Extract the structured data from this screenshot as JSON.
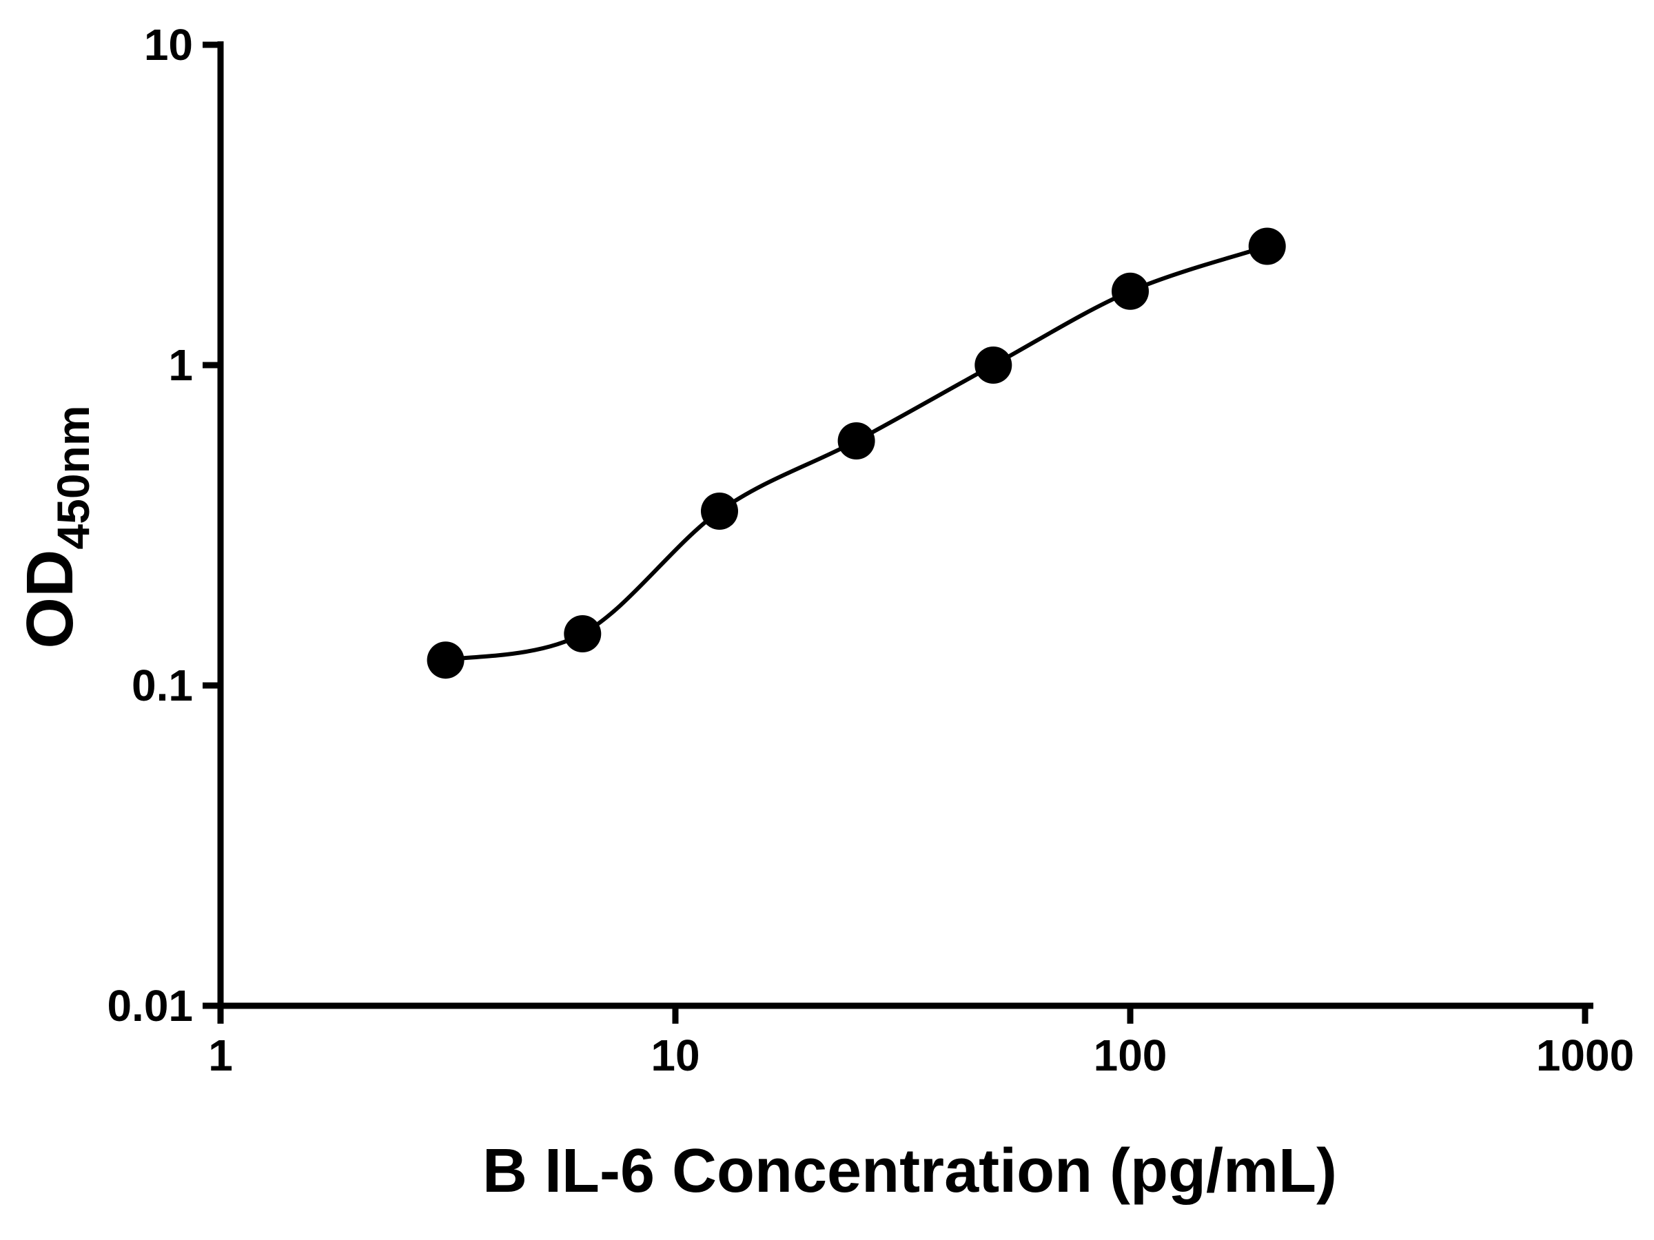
{
  "figure": {
    "background_color": "#ffffff",
    "axis_color": "#000000"
  },
  "chart_data": {
    "type": "scatter",
    "title": "",
    "xlabel": "B IL-6 Concentration (pg/mL)",
    "ylabel": "OD450nm",
    "ylabel_main": "OD",
    "ylabel_sub": "450nm",
    "xscale": "log",
    "yscale": "log",
    "xlim": [
      1,
      1000
    ],
    "ylim": [
      0.01,
      10
    ],
    "x_tick_values": [
      1,
      10,
      100,
      1000
    ],
    "x_tick_labels": [
      "1",
      "10",
      "100",
      "1000"
    ],
    "y_tick_values": [
      10,
      1,
      0.1,
      0.01
    ],
    "y_tick_labels": [
      "10",
      "1",
      "0.1",
      "0.01"
    ],
    "grid": false,
    "legend": false,
    "marker": "filled-circle",
    "marker_color": "#000000",
    "line_color": "#000000",
    "x": [
      3.125,
      6.25,
      12.5,
      25,
      50,
      100,
      200
    ],
    "y": [
      0.12,
      0.145,
      0.35,
      0.58,
      1.0,
      1.7,
      2.35
    ]
  }
}
